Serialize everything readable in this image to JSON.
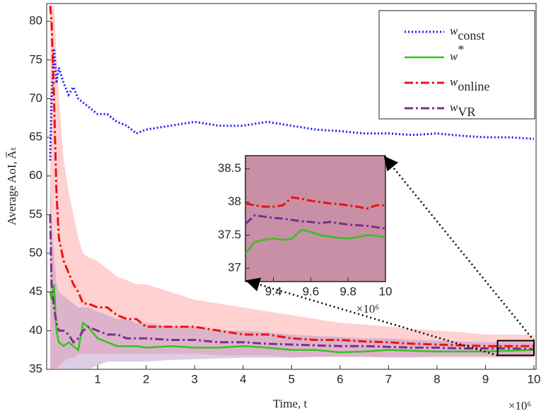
{
  "chart_data": [
    {
      "type": "line",
      "xlabel": "Time, t",
      "ylabel": "Average AoI, A̅ₜ",
      "x_multiplier": "×10⁶",
      "xlim": [
        0,
        10
      ],
      "ylim": [
        35,
        82.3
      ],
      "xticks": [
        1,
        2,
        3,
        4,
        5,
        6,
        7,
        8,
        9,
        10
      ],
      "yticks": [
        35,
        40,
        45,
        50,
        55,
        60,
        65,
        70,
        75,
        80
      ],
      "legend": "upper right",
      "grid": false,
      "x": [
        0.02,
        0.05,
        0.1,
        0.15,
        0.2,
        0.3,
        0.4,
        0.5,
        0.6,
        0.7,
        0.8,
        1.0,
        1.2,
        1.4,
        1.6,
        1.8,
        2.0,
        2.5,
        3,
        3.5,
        4,
        4.5,
        5,
        5.5,
        6,
        6.5,
        7,
        7.5,
        8,
        8.5,
        9,
        9.5,
        10
      ],
      "bands": [
        {
          "color": "#ff9a9a",
          "upper": [
            82,
            82,
            82,
            76,
            70,
            62,
            58,
            55,
            52,
            50,
            49.5,
            49,
            48,
            47,
            46.5,
            46,
            46,
            45,
            44,
            43.5,
            43,
            42.5,
            42,
            41.5,
            41,
            40.8,
            40.5,
            40.2,
            40,
            39.8,
            39.5,
            39.5,
            39.5
          ],
          "lower": [
            35,
            35,
            35,
            35,
            35.5,
            36,
            36.5,
            36.5,
            37,
            37,
            37,
            37,
            37,
            37,
            37,
            37,
            37,
            37,
            37,
            36.8,
            36.8,
            36.8,
            36.6,
            36.6,
            36.6,
            36.6,
            36.5,
            36.5,
            36.5,
            36.5,
            36.5,
            36.5,
            36.5
          ]
        },
        {
          "color": "#b48fc4",
          "upper": [
            60,
            55,
            50,
            46,
            45,
            44.5,
            44,
            43.5,
            43,
            43,
            43,
            42.5,
            42,
            41.5,
            41.5,
            41,
            41,
            40.5,
            40.5,
            40,
            40,
            39.8,
            39.5,
            39.3,
            39.2,
            39,
            39,
            38.8,
            38.7,
            38.6,
            38.5,
            38.5,
            38.5
          ],
          "lower": [
            35,
            35,
            35,
            35,
            35,
            35,
            35,
            35,
            35,
            35,
            35,
            35.5,
            36,
            36,
            36,
            36,
            36,
            36.2,
            36.3,
            36.4,
            36.5,
            36.5,
            36.5,
            36.6,
            36.6,
            36.6,
            36.6,
            36.6,
            36.7,
            36.7,
            36.7,
            36.7,
            36.7
          ]
        }
      ],
      "series": [
        {
          "name": "w",
          "name_sub": "const",
          "color": "#1a1aff",
          "style": "dotted",
          "values": [
            62,
            70,
            76.5,
            72,
            74,
            72,
            70.5,
            71.5,
            70,
            69.5,
            69,
            68,
            68,
            67,
            66.5,
            65.5,
            66,
            66.5,
            67,
            66.5,
            66.5,
            67,
            66.5,
            66,
            65.8,
            65.5,
            65.5,
            65.3,
            65.5,
            65.2,
            65,
            65,
            64.8
          ]
        },
        {
          "name": "w",
          "name_sup": "*",
          "color": "#33c41f",
          "style": "solid",
          "values": [
            45,
            44,
            46,
            40,
            38.5,
            38,
            38.5,
            38,
            37.5,
            41,
            40.5,
            39,
            38.5,
            38,
            38,
            38,
            37.8,
            38,
            37.8,
            37.8,
            38,
            37.8,
            37.5,
            37.5,
            37.2,
            37.3,
            37.5,
            37.4,
            37.3,
            37.3,
            37.3,
            37.4,
            37.5
          ]
        },
        {
          "name": "w",
          "name_sub": "online",
          "color": "#ee1111",
          "style": "dashdot",
          "values": [
            82,
            80,
            70,
            58,
            52,
            49,
            47.5,
            46,
            45,
            43.5,
            43.5,
            43,
            43,
            42,
            41.5,
            41.5,
            40.5,
            40.5,
            40.5,
            40,
            39.5,
            39.5,
            39,
            38.8,
            38.8,
            38.6,
            38.5,
            38.3,
            38.2,
            38.1,
            38,
            38,
            38
          ]
        },
        {
          "name": "w",
          "name_sub": "VR",
          "color": "#7e2f8e",
          "style": "dashdot",
          "values": [
            55,
            46,
            43,
            41,
            40,
            40,
            39.5,
            38.5,
            39,
            40,
            40.5,
            40,
            39.5,
            39.5,
            39,
            39,
            39,
            38.8,
            38.8,
            38.5,
            38.5,
            38.3,
            38.2,
            38.1,
            38,
            38,
            37.9,
            37.8,
            37.8,
            37.7,
            37.7,
            37.7,
            37.6
          ]
        }
      ]
    },
    {
      "type": "line",
      "background": "#c98fa6",
      "x_multiplier": "×10⁶",
      "xlim": [
        9.25,
        10
      ],
      "ylim": [
        36.8,
        38.7
      ],
      "xticks": [
        9.4,
        9.6,
        9.8,
        10
      ],
      "yticks": [
        37,
        37.5,
        38,
        38.5
      ],
      "x": [
        9.25,
        9.3,
        9.35,
        9.4,
        9.45,
        9.5,
        9.55,
        9.6,
        9.65,
        9.7,
        9.75,
        9.8,
        9.85,
        9.9,
        9.95,
        10
      ],
      "series": [
        {
          "color": "#33c41f",
          "style": "solid",
          "values": [
            37.22,
            37.4,
            37.43,
            37.45,
            37.43,
            37.45,
            37.58,
            37.55,
            37.5,
            37.48,
            37.46,
            37.45,
            37.47,
            37.5,
            37.49,
            37.47
          ]
        },
        {
          "color": "#ee1111",
          "style": "dashdot",
          "values": [
            37.98,
            37.95,
            37.93,
            37.93,
            37.95,
            38.07,
            38.05,
            38.02,
            38,
            37.98,
            37.97,
            37.95,
            37.93,
            37.9,
            37.95,
            37.95
          ]
        },
        {
          "color": "#7e2f8e",
          "style": "dashdot",
          "values": [
            37.67,
            37.8,
            37.78,
            37.76,
            37.75,
            37.73,
            37.71,
            37.7,
            37.68,
            37.7,
            37.68,
            37.66,
            37.65,
            37.64,
            37.62,
            37.6
          ]
        }
      ]
    }
  ]
}
